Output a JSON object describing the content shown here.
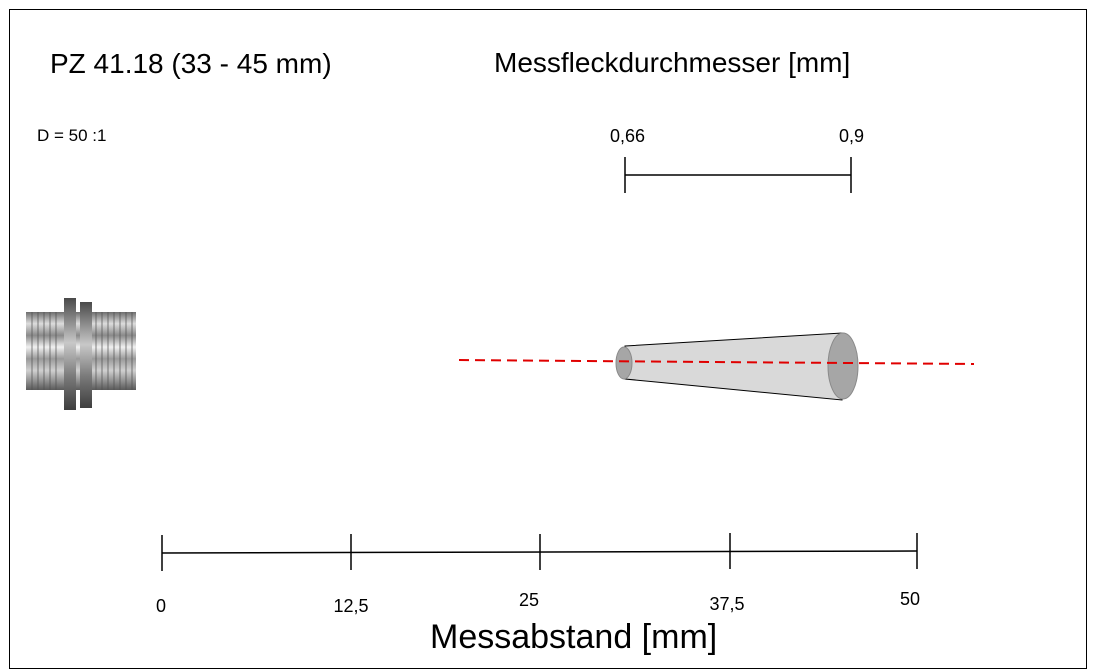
{
  "title": "PZ 41.18 (33 - 45 mm)",
  "spot_title": "Messfleckdurchmesser [mm]",
  "ratio": "D = 50 :1",
  "spot_labels": [
    "0,66",
    "0,9"
  ],
  "distance_title": "Messabstand [mm]",
  "distance_ticks": [
    "0",
    "12,5",
    "25",
    "37,5",
    "50"
  ],
  "colors": {
    "beam": "#e00000",
    "cone": "#d9d9d9",
    "cone_end": "#a6a6a6",
    "line": "#000000"
  }
}
